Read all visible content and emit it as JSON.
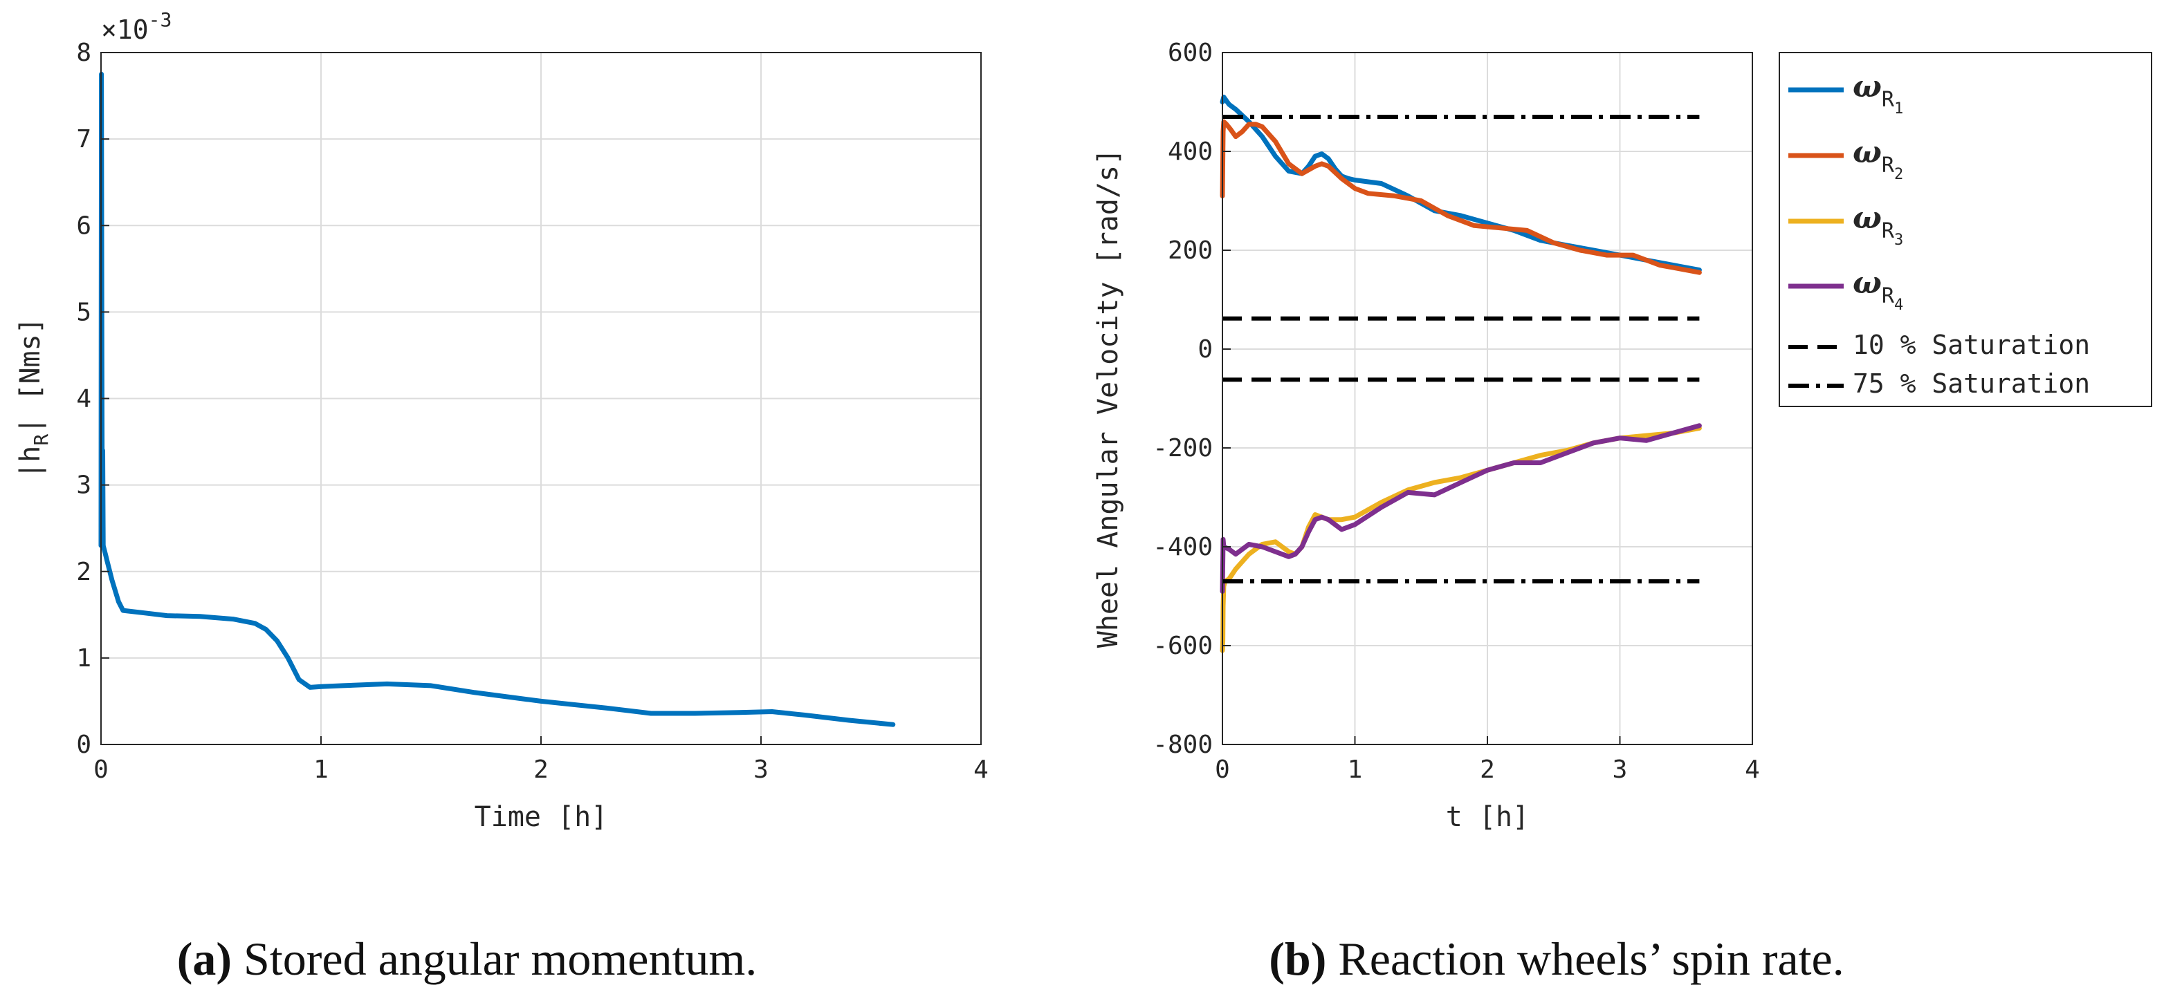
{
  "chart_data": [
    {
      "type": "line",
      "xlabel": "Time [h]",
      "ylabel_prefix": "|h",
      "ylabel_sub": "R",
      "ylabel_suffix": "|  [Nms]",
      "multiplier_base": "×10",
      "multiplier_exp": "-3",
      "xlim": [
        0,
        4
      ],
      "ylim": [
        0,
        8
      ],
      "xticks": [
        0,
        1,
        2,
        3,
        4
      ],
      "yticks": [
        0,
        1,
        2,
        3,
        4,
        5,
        6,
        7,
        8
      ],
      "grid": true,
      "series": [
        {
          "name": "|h_R|",
          "color": "#0072BD",
          "x": [
            0,
            0.002,
            0.004,
            0.006,
            0.008,
            0.01,
            0.015,
            0.02,
            0.03,
            0.05,
            0.08,
            0.1,
            0.2,
            0.3,
            0.45,
            0.6,
            0.7,
            0.75,
            0.8,
            0.85,
            0.9,
            0.95,
            1.0,
            1.1,
            1.3,
            1.5,
            1.7,
            2.0,
            2.3,
            2.5,
            2.7,
            2.9,
            3.05,
            3.2,
            3.4,
            3.6
          ],
          "y": [
            2.3,
            7.75,
            4.5,
            2.5,
            3.4,
            2.3,
            2.25,
            2.2,
            2.1,
            1.9,
            1.65,
            1.55,
            1.52,
            1.49,
            1.48,
            1.45,
            1.4,
            1.33,
            1.2,
            1.0,
            0.75,
            0.66,
            0.67,
            0.68,
            0.7,
            0.68,
            0.6,
            0.5,
            0.42,
            0.36,
            0.36,
            0.37,
            0.38,
            0.34,
            0.28,
            0.23
          ]
        }
      ]
    },
    {
      "type": "line",
      "xlabel": "t [h]",
      "ylabel": "Wheel Angular Velocity [rad/s]",
      "xlim": [
        0,
        4
      ],
      "ylim": [
        -800,
        600
      ],
      "xticks": [
        0,
        1,
        2,
        3,
        4
      ],
      "yticks": [
        -800,
        -600,
        -400,
        -200,
        0,
        200,
        400,
        600
      ],
      "grid": true,
      "legend": "outside-right-top",
      "series": [
        {
          "name": "ω_R1",
          "sym": "ω",
          "sub": "R",
          "subsub": "1",
          "color": "#0072BD",
          "x": [
            0,
            0.01,
            0.05,
            0.1,
            0.2,
            0.3,
            0.4,
            0.5,
            0.6,
            0.65,
            0.7,
            0.75,
            0.8,
            0.85,
            0.9,
            0.95,
            1.0,
            1.2,
            1.4,
            1.6,
            1.8,
            2.0,
            2.2,
            2.4,
            2.6,
            2.8,
            3.0,
            3.2,
            3.4,
            3.6
          ],
          "y": [
            500,
            510,
            495,
            485,
            460,
            430,
            390,
            360,
            355,
            370,
            390,
            395,
            385,
            365,
            350,
            345,
            342,
            335,
            310,
            280,
            270,
            255,
            240,
            220,
            210,
            200,
            190,
            180,
            170,
            160
          ]
        },
        {
          "name": "ω_R2",
          "sym": "ω",
          "sub": "R",
          "subsub": "2",
          "color": "#D95319",
          "x": [
            0,
            0.005,
            0.01,
            0.03,
            0.06,
            0.1,
            0.15,
            0.2,
            0.25,
            0.3,
            0.4,
            0.5,
            0.6,
            0.7,
            0.75,
            0.8,
            0.9,
            1.0,
            1.1,
            1.3,
            1.5,
            1.7,
            1.9,
            2.1,
            2.3,
            2.5,
            2.7,
            2.9,
            3.1,
            3.3,
            3.6
          ],
          "y": [
            310,
            440,
            460,
            455,
            445,
            430,
            440,
            455,
            455,
            450,
            420,
            375,
            355,
            370,
            375,
            370,
            345,
            325,
            315,
            310,
            300,
            270,
            250,
            245,
            240,
            215,
            200,
            190,
            190,
            170,
            155
          ]
        },
        {
          "name": "ω_R3",
          "sym": "ω",
          "sub": "R",
          "subsub": "3",
          "color": "#EDB120",
          "x": [
            0,
            0.003,
            0.005,
            0.01,
            0.02,
            0.05,
            0.1,
            0.2,
            0.3,
            0.4,
            0.5,
            0.55,
            0.6,
            0.65,
            0.7,
            0.8,
            0.9,
            1.0,
            1.2,
            1.4,
            1.6,
            1.8,
            2.0,
            2.2,
            2.4,
            2.6,
            2.8,
            3.0,
            3.2,
            3.4,
            3.6
          ],
          "y": [
            -610,
            -590,
            -520,
            -480,
            -470,
            -465,
            -445,
            -415,
            -395,
            -390,
            -410,
            -415,
            -400,
            -360,
            -335,
            -345,
            -345,
            -340,
            -310,
            -285,
            -270,
            -260,
            -245,
            -230,
            -215,
            -205,
            -190,
            -180,
            -175,
            -170,
            -160
          ]
        },
        {
          "name": "ω_R4",
          "sym": "ω",
          "sub": "R",
          "subsub": "4",
          "color": "#7E2F8E",
          "x": [
            0,
            0.005,
            0.01,
            0.05,
            0.1,
            0.15,
            0.2,
            0.3,
            0.4,
            0.5,
            0.55,
            0.6,
            0.65,
            0.7,
            0.75,
            0.8,
            0.9,
            1.0,
            1.2,
            1.4,
            1.6,
            1.8,
            2.0,
            2.2,
            2.4,
            2.6,
            2.8,
            3.0,
            3.2,
            3.4,
            3.6
          ],
          "y": [
            -490,
            -385,
            -400,
            -405,
            -415,
            -405,
            -395,
            -400,
            -410,
            -420,
            -415,
            -400,
            -370,
            -345,
            -340,
            -345,
            -365,
            -355,
            -320,
            -290,
            -295,
            -270,
            -245,
            -230,
            -230,
            -210,
            -190,
            -180,
            -185,
            -170,
            -155
          ]
        },
        {
          "name": "10 % Saturation",
          "color": "#000000",
          "dash": "dash",
          "lines": [
            {
              "x": [
                0,
                3.6
              ],
              "y": [
                62,
                62
              ]
            },
            {
              "x": [
                0,
                3.6
              ],
              "y": [
                -62,
                -62
              ]
            }
          ]
        },
        {
          "name": "75 % Saturation",
          "color": "#000000",
          "dash": "dashdot",
          "lines": [
            {
              "x": [
                0,
                3.6
              ],
              "y": [
                470,
                470
              ]
            },
            {
              "x": [
                0,
                3.6
              ],
              "y": [
                -470,
                -470
              ]
            }
          ]
        }
      ]
    }
  ],
  "captions": [
    {
      "label": "(a)",
      "text": " Stored angular momentum."
    },
    {
      "label": "(b)",
      "text": " Reaction wheels’ spin rate."
    }
  ]
}
